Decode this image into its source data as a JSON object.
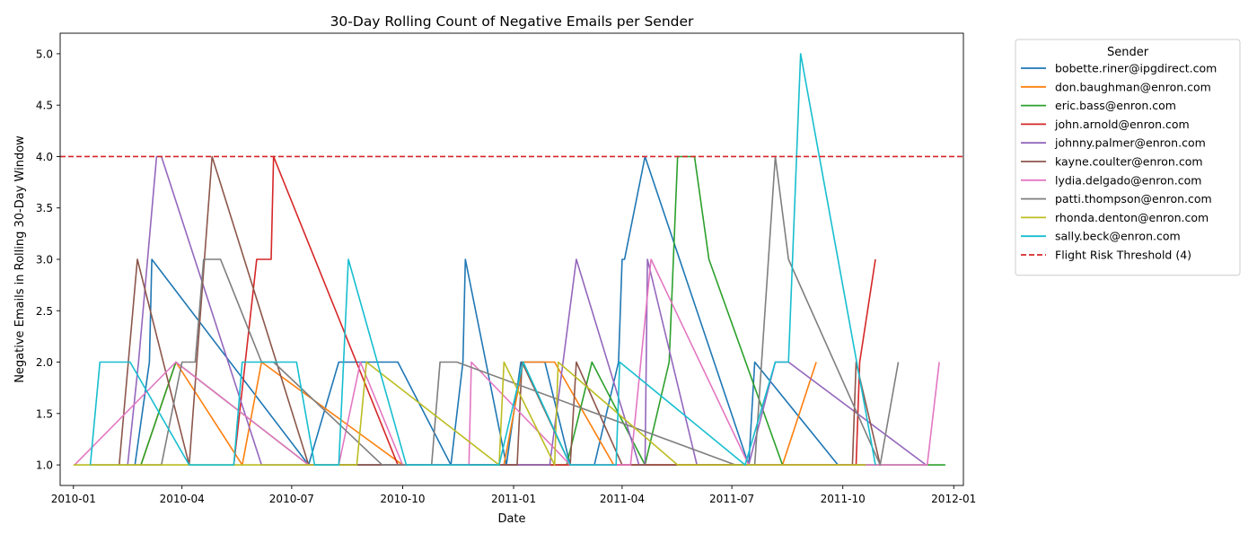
{
  "chart_data": {
    "type": "line",
    "title": "30-Day Rolling Count of Negative Emails per Sender",
    "xlabel": "Date",
    "ylabel": "Negative Emails in Rolling 30-Day Window",
    "xlim": [
      "2009-12-21",
      "2012-01-09"
    ],
    "ylim": [
      0.8,
      5.2
    ],
    "x_ticks": [
      "2010-01-01",
      "2010-04-01",
      "2010-07-01",
      "2010-10-01",
      "2011-01-01",
      "2011-04-01",
      "2011-07-01",
      "2011-10-01",
      "2012-01-01"
    ],
    "x_tick_labels": [
      "2010-01",
      "2010-04",
      "2010-07",
      "2010-10",
      "2011-01",
      "2011-04",
      "2011-07",
      "2011-10",
      "2012-01"
    ],
    "y_ticks": [
      1.0,
      1.5,
      2.0,
      2.5,
      3.0,
      3.5,
      4.0,
      4.5,
      5.0
    ],
    "y_tick_labels": [
      "1.0",
      "1.5",
      "2.0",
      "2.5",
      "3.0",
      "3.5",
      "4.0",
      "4.5",
      "5.0"
    ],
    "grid": false,
    "legend": {
      "title": "Sender",
      "placement": "outside-right"
    },
    "threshold": {
      "name": "Flight Risk Threshold (4)",
      "value": 4,
      "color": "#d62728",
      "style": "dashed"
    },
    "series": [
      {
        "name": "bobette.riner@ipgdirect.com",
        "color": "#1f77b4",
        "points": [
          [
            "2010-02-21",
            1
          ],
          [
            "2010-03-05",
            2
          ],
          [
            "2010-03-07",
            3
          ],
          [
            "2010-07-15",
            1
          ],
          [
            "2010-08-09",
            2
          ],
          [
            "2010-09-27",
            2
          ],
          [
            "2010-11-10",
            1
          ],
          [
            "2010-11-20",
            2
          ],
          [
            "2010-11-22",
            3
          ],
          [
            "2010-12-26",
            1
          ],
          [
            "2011-01-07",
            2
          ],
          [
            "2011-01-27",
            2
          ],
          [
            "2011-02-17",
            1
          ],
          [
            "2011-03-09",
            1
          ],
          [
            "2011-03-29",
            2
          ],
          [
            "2011-04-01",
            3
          ],
          [
            "2011-04-03",
            3
          ],
          [
            "2011-04-20",
            4
          ],
          [
            "2011-07-15",
            1
          ],
          [
            "2011-07-20",
            2
          ],
          [
            "2011-09-27",
            1
          ],
          [
            "2011-10-20",
            1
          ]
        ]
      },
      {
        "name": "don.baughman@enron.com",
        "color": "#ff7f0e",
        "points": [
          [
            "2010-02-26",
            1
          ],
          [
            "2010-03-27",
            2
          ],
          [
            "2010-05-21",
            1
          ],
          [
            "2010-06-06",
            2
          ],
          [
            "2010-10-01",
            1
          ],
          [
            "2010-12-24",
            1
          ],
          [
            "2011-01-09",
            2
          ],
          [
            "2011-02-04",
            2
          ],
          [
            "2011-03-25",
            1
          ],
          [
            "2011-04-04",
            1
          ],
          [
            "2011-08-12",
            1
          ],
          [
            "2011-09-09",
            2
          ]
        ]
      },
      {
        "name": "eric.bass@enron.com",
        "color": "#2ca02c",
        "points": [
          [
            "2010-02-26",
            1
          ],
          [
            "2010-03-27",
            2
          ],
          [
            "2010-07-15",
            1
          ],
          [
            "2011-02-14",
            1
          ],
          [
            "2011-03-07",
            2
          ],
          [
            "2011-04-20",
            1
          ],
          [
            "2011-05-10",
            2
          ],
          [
            "2011-05-17",
            4
          ],
          [
            "2011-05-31",
            4
          ],
          [
            "2011-06-12",
            3
          ],
          [
            "2011-08-12",
            1
          ],
          [
            "2011-12-25",
            1
          ]
        ]
      },
      {
        "name": "john.arnold@enron.com",
        "color": "#d62728",
        "points": [
          [
            "2010-05-14",
            1
          ],
          [
            "2010-06-02",
            3
          ],
          [
            "2010-06-14",
            3
          ],
          [
            "2010-06-16",
            4
          ],
          [
            "2010-09-27",
            1
          ],
          [
            "2011-04-04",
            1
          ],
          [
            "2011-04-21",
            1
          ],
          [
            "2011-10-12",
            1
          ],
          [
            "2011-10-15",
            2
          ],
          [
            "2011-10-28",
            3
          ]
        ]
      },
      {
        "name": "johnny.palmer@enron.com",
        "color": "#9467bd",
        "points": [
          [
            "2010-02-15",
            1
          ],
          [
            "2010-02-24",
            2
          ],
          [
            "2010-03-11",
            4
          ],
          [
            "2010-03-15",
            4
          ],
          [
            "2010-06-06",
            1
          ],
          [
            "2011-01-31",
            1
          ],
          [
            "2011-02-22",
            3
          ],
          [
            "2011-04-15",
            1
          ],
          [
            "2011-04-20",
            1
          ],
          [
            "2011-04-22",
            3
          ],
          [
            "2011-06-02",
            1
          ],
          [
            "2011-07-15",
            1
          ],
          [
            "2011-08-06",
            2
          ],
          [
            "2011-08-17",
            2
          ],
          [
            "2011-12-09",
            1
          ]
        ]
      },
      {
        "name": "kayne.coulter@enron.com",
        "color": "#8c564b",
        "points": [
          [
            "2010-02-08",
            1
          ],
          [
            "2010-02-23",
            3
          ],
          [
            "2010-04-07",
            1
          ],
          [
            "2010-04-26",
            4
          ],
          [
            "2010-07-15",
            1
          ],
          [
            "2010-08-24",
            1
          ],
          [
            "2010-10-01",
            1
          ],
          [
            "2010-12-20",
            1
          ],
          [
            "2011-01-04",
            1
          ],
          [
            "2011-01-08",
            2
          ],
          [
            "2011-02-17",
            1
          ],
          [
            "2011-02-22",
            2
          ],
          [
            "2011-04-01",
            1
          ],
          [
            "2011-04-20",
            1
          ],
          [
            "2011-05-10",
            1
          ],
          [
            "2011-10-09",
            1
          ],
          [
            "2011-10-12",
            2
          ],
          [
            "2011-11-01",
            1
          ]
        ]
      },
      {
        "name": "lydia.delgado@enron.com",
        "color": "#e377c2",
        "points": [
          [
            "2010-01-02",
            1
          ],
          [
            "2010-03-27",
            2
          ],
          [
            "2010-07-15",
            1
          ],
          [
            "2010-08-09",
            1
          ],
          [
            "2010-08-27",
            2
          ],
          [
            "2010-10-01",
            1
          ],
          [
            "2010-11-25",
            1
          ],
          [
            "2010-11-27",
            2
          ],
          [
            "2011-02-17",
            1
          ],
          [
            "2011-04-08",
            1
          ],
          [
            "2011-04-25",
            3
          ],
          [
            "2011-07-15",
            1
          ],
          [
            "2011-08-09",
            1
          ],
          [
            "2011-12-10",
            1
          ],
          [
            "2011-12-20",
            2
          ]
        ]
      },
      {
        "name": "patti.thompson@enron.com",
        "color": "#7f7f7f",
        "points": [
          [
            "2010-01-15",
            1
          ],
          [
            "2010-02-26",
            1
          ],
          [
            "2010-03-15",
            1
          ],
          [
            "2010-04-01",
            2
          ],
          [
            "2010-04-12",
            2
          ],
          [
            "2010-04-19",
            3
          ],
          [
            "2010-05-03",
            3
          ],
          [
            "2010-06-06",
            2
          ],
          [
            "2010-06-16",
            2
          ],
          [
            "2010-09-14",
            1
          ],
          [
            "2010-10-25",
            1
          ],
          [
            "2010-11-01",
            2
          ],
          [
            "2010-11-15",
            2
          ],
          [
            "2011-07-04",
            1
          ],
          [
            "2011-07-20",
            1
          ],
          [
            "2011-08-06",
            4
          ],
          [
            "2011-08-17",
            3
          ],
          [
            "2011-11-01",
            1
          ],
          [
            "2011-11-16",
            2
          ]
        ]
      },
      {
        "name": "rhonda.denton@enron.com",
        "color": "#bcbd22",
        "points": [
          [
            "2010-01-01",
            1
          ],
          [
            "2010-08-24",
            1
          ],
          [
            "2010-09-01",
            2
          ],
          [
            "2010-12-20",
            1
          ],
          [
            "2010-12-24",
            2
          ],
          [
            "2011-02-04",
            1
          ],
          [
            "2011-02-07",
            2
          ],
          [
            "2011-05-17",
            1
          ],
          [
            "2011-07-20",
            1
          ],
          [
            "2011-10-20",
            1
          ]
        ]
      },
      {
        "name": "sally.beck@enron.com",
        "color": "#17becf",
        "points": [
          [
            "2010-01-15",
            1
          ],
          [
            "2010-01-23",
            2
          ],
          [
            "2010-02-17",
            2
          ],
          [
            "2010-04-07",
            1
          ],
          [
            "2010-05-14",
            1
          ],
          [
            "2010-05-21",
            2
          ],
          [
            "2010-07-05",
            2
          ],
          [
            "2010-07-20",
            1
          ],
          [
            "2010-08-09",
            1
          ],
          [
            "2010-08-17",
            3
          ],
          [
            "2010-10-04",
            1
          ],
          [
            "2010-12-20",
            1
          ],
          [
            "2011-01-09",
            2
          ],
          [
            "2011-02-17",
            1
          ],
          [
            "2011-03-27",
            1
          ],
          [
            "2011-03-30",
            2
          ],
          [
            "2011-07-12",
            1
          ],
          [
            "2011-08-06",
            2
          ],
          [
            "2011-08-17",
            2
          ],
          [
            "2011-08-27",
            5
          ],
          [
            "2011-10-28",
            1
          ]
        ]
      }
    ]
  }
}
